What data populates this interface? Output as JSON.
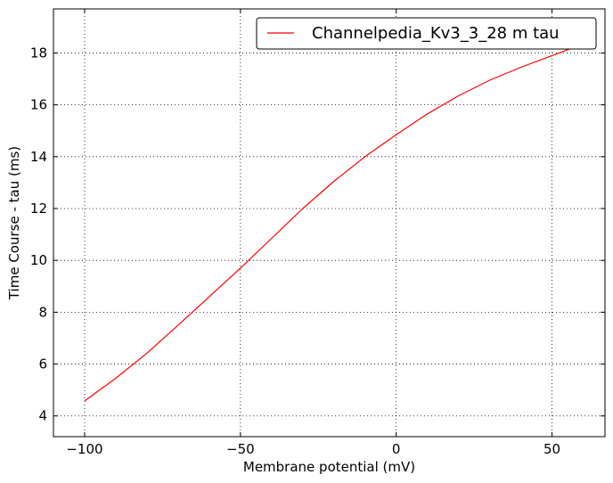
{
  "chart_data": {
    "type": "line",
    "title": "",
    "xlabel": "Membrane potential (mV)",
    "ylabel": "Time Course - tau (ms)",
    "xlim": [
      -110,
      67
    ],
    "ylim": [
      3.2,
      19.7
    ],
    "xticks": [
      -100,
      -50,
      0,
      50
    ],
    "xtick_labels": [
      "−100",
      "−50",
      "0",
      "50"
    ],
    "yticks": [
      4,
      6,
      8,
      10,
      12,
      14,
      16,
      18
    ],
    "ytick_labels": [
      "4",
      "6",
      "8",
      "10",
      "12",
      "14",
      "16",
      "18"
    ],
    "grid": true,
    "legend_position": "top-right",
    "series": [
      {
        "name": "Channelpedia_Kv3_3_28 m tau",
        "color": "#ff0000",
        "x": [
          -100,
          -90,
          -80,
          -70,
          -60,
          -50,
          -40,
          -30,
          -20,
          -10,
          0,
          10,
          20,
          30,
          40,
          50,
          60
        ],
        "y": [
          4.58,
          5.45,
          6.42,
          7.5,
          8.6,
          9.7,
          10.85,
          12.0,
          13.05,
          14.0,
          14.85,
          15.65,
          16.35,
          16.95,
          17.45,
          17.9,
          18.35
        ]
      }
    ]
  }
}
